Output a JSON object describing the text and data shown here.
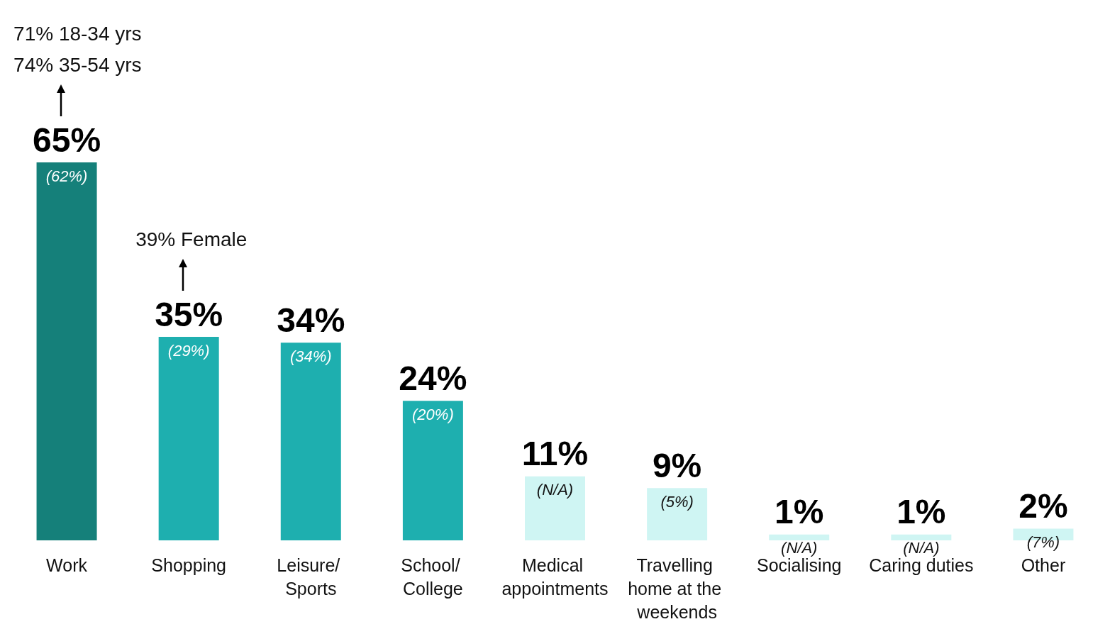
{
  "chart_data": {
    "type": "bar",
    "categories": [
      "Work",
      "Shopping",
      "Leisure/ Sports",
      "School/ College",
      "Medical appointments",
      "Travelling home at the weekends",
      "Socialising",
      "Caring duties",
      "Other"
    ],
    "values": [
      65,
      35,
      34,
      24,
      11,
      9,
      1,
      1,
      2
    ],
    "colors": [
      "#15807a",
      "#1eafaf",
      "#1eafaf",
      "#1eafaf",
      "#cff5f3",
      "#cff5f3",
      "#cff5f3",
      "#cff5f3",
      "#cff5f3"
    ],
    "value_labels": [
      "65%",
      "35%",
      "34%",
      "24%",
      "11%",
      "9%",
      "1%",
      "1%",
      "2%"
    ],
    "annotations": [
      "71% 18-34 yrs",
      "74% 35-54 yrs",
      "39% Female",
      {
        "text": "(62%)",
        "x": "Work",
        "y": 65
      },
      {
        "text": "(29%)",
        "x": "Shopping",
        "y": 35
      },
      {
        "text": "(34%)",
        "x": "Leisure/ Sports",
        "y": 34
      },
      {
        "text": "(20%)",
        "x": "School/ College",
        "y": 24
      },
      {
        "text": "(N/A)",
        "x": "Medical appointments",
        "y": 11
      },
      {
        "text": "(5%)",
        "x": "Travelling home at the weekends",
        "y": 9
      },
      {
        "text": "(N/A)",
        "x": "Socialising",
        "y": 1
      },
      {
        "text": "(N/A)",
        "x": "Caring duties",
        "y": 1
      },
      {
        "text": "(7%)",
        "x": "Other",
        "y": 2
      }
    ]
  }
}
